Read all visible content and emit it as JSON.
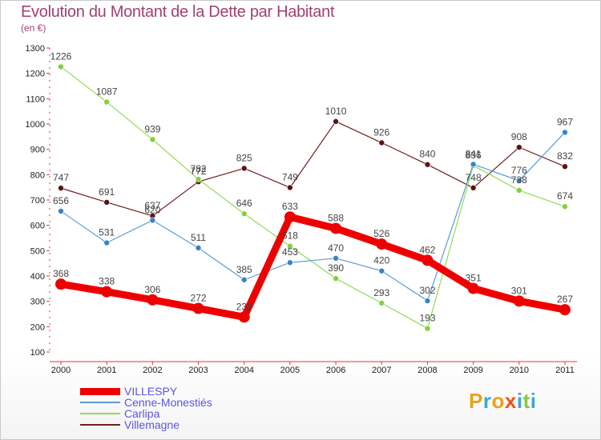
{
  "chart": {
    "title": "Evolution du Montant de la Dette par Habitant",
    "subtitle": "(en €)"
  },
  "brand": {
    "letters": [
      "P",
      "r",
      "o",
      "x",
      "i",
      "t",
      "i"
    ],
    "colors": [
      "#e8a21c",
      "#3aa7d4",
      "#e8a21c",
      "#e8541c",
      "#3aa7d4",
      "#8dc63f",
      "#3aa7d4"
    ]
  },
  "chart_data": {
    "type": "line",
    "categories": [
      "2000",
      "2001",
      "2002",
      "2003",
      "2004",
      "2005",
      "2006",
      "2007",
      "2008",
      "2009",
      "2010",
      "2011"
    ],
    "ylim": [
      100,
      1300
    ],
    "yticks": [
      100,
      200,
      300,
      400,
      500,
      600,
      700,
      800,
      900,
      1000,
      1100,
      1200,
      1300
    ],
    "grid": false,
    "legend_position": "bottom-left",
    "series": [
      {
        "name": "Villemagne",
        "color": "#6e1f1f",
        "marker": "#5c1212",
        "width": 1.2,
        "radius": 3.5,
        "values": [
          747,
          691,
          637,
          772,
          825,
          749,
          1010,
          926,
          840,
          748,
          908,
          832
        ]
      },
      {
        "name": "Carlipa",
        "color": "#8fdc55",
        "marker": "#7fd23f",
        "width": 1.2,
        "radius": 3.5,
        "values": [
          1226,
          1087,
          939,
          782,
          646,
          518,
          390,
          293,
          193,
          836,
          738,
          674
        ]
      },
      {
        "name": "Cenne-Monestiés",
        "color": "#5c9ad4",
        "marker": "#3a82c8",
        "width": 1.2,
        "radius": 3.5,
        "values": [
          656,
          531,
          620,
          511,
          385,
          453,
          470,
          420,
          302,
          841,
          776,
          967
        ]
      },
      {
        "name": "VILLESPY",
        "color": "#ee0000",
        "marker": "#ee0000",
        "width": 9,
        "radius": 7,
        "values": [
          368,
          338,
          306,
          272,
          238,
          633,
          588,
          526,
          462,
          351,
          301,
          267
        ]
      }
    ],
    "legend_order": [
      "VILLESPY",
      "Cenne-Monestiés",
      "Carlipa",
      "Villemagne"
    ]
  }
}
